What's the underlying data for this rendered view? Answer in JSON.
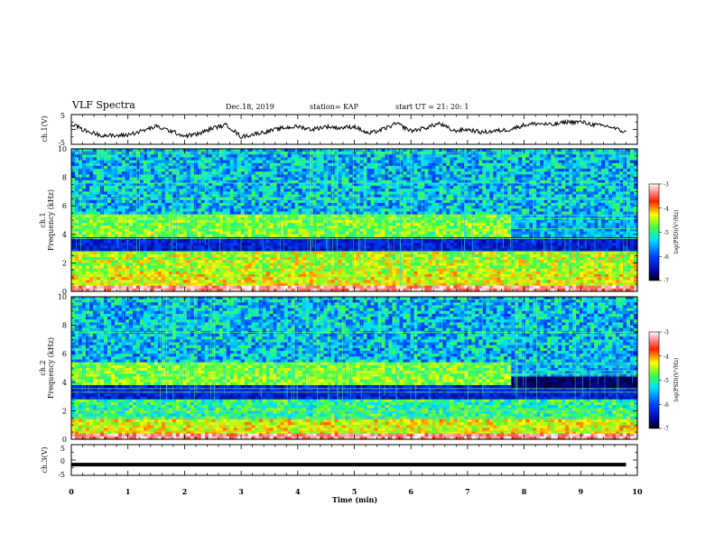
{
  "header": {
    "title": "VLF Spectra",
    "date": "Dec.18, 2019",
    "station": "station= KAP",
    "start": "start  UT  =   21: 20: 1"
  },
  "chart_data": [
    {
      "type": "line",
      "panel": "ch1-waveform",
      "ylabel": "ch.1(V)",
      "ylim": [
        -5,
        5
      ],
      "y_ticks": [
        "5",
        "-5"
      ],
      "xlim": [
        0,
        10
      ],
      "series": [
        {
          "x": [
            0,
            0.25,
            0.5,
            0.75,
            1.0,
            1.25,
            1.5,
            1.75,
            2.0,
            2.25,
            2.5,
            2.75,
            3.0,
            3.25,
            3.5,
            3.75,
            4.0,
            4.25,
            4.5,
            4.75,
            5.0,
            5.25,
            5.5,
            5.75,
            6.0,
            6.25,
            6.5,
            6.75,
            7.0,
            7.25,
            7.5,
            7.75,
            8.0,
            8.25,
            8.5,
            8.75,
            9.0,
            9.25,
            9.5,
            9.8
          ],
          "values": [
            2.0,
            -0.5,
            -1.8,
            -2.2,
            -1.8,
            -0.5,
            1.0,
            -0.5,
            -2.2,
            -1.5,
            0.5,
            1.5,
            -2.5,
            -1.5,
            -0.5,
            0.5,
            1.0,
            0.0,
            1.0,
            0.5,
            1.0,
            -1.5,
            0.0,
            2.0,
            -0.5,
            0.5,
            2.0,
            -0.5,
            0.0,
            -1.0,
            -0.5,
            0.0,
            1.5,
            2.0,
            1.5,
            2.5,
            2.5,
            1.5,
            1.0,
            -1.0
          ]
        }
      ]
    },
    {
      "type": "heatmap",
      "panel": "ch1-spectrogram",
      "ylabel_lines": [
        "ch.1",
        "Frequency  (kHz)"
      ],
      "ylim": [
        0,
        10
      ],
      "y_ticks": [
        "0",
        "2",
        "4",
        "6",
        "8",
        "10"
      ],
      "xlim": [
        0,
        10
      ],
      "colorbar": {
        "label": "log(PSD)(V²/Hz)",
        "range": [
          -7,
          -3
        ],
        "ticks": [
          "-3",
          "-4",
          "-5",
          "-6",
          "-7"
        ]
      }
    },
    {
      "type": "heatmap",
      "panel": "ch2-spectrogram",
      "ylabel_lines": [
        "ch.2",
        "Frequency  (kHz)"
      ],
      "ylim": [
        0,
        10
      ],
      "y_ticks": [
        "0",
        "2",
        "4",
        "6",
        "8",
        "10"
      ],
      "xlim": [
        0,
        10
      ],
      "colorbar": {
        "label": "log(PSD)(V²/Hz)",
        "range": [
          -7,
          -3
        ],
        "ticks": [
          "-3",
          "-4",
          "-5",
          "-6",
          "-7"
        ]
      }
    },
    {
      "type": "line",
      "panel": "ch3-waveform",
      "ylabel": "ch.3(V)",
      "ylim": [
        -5,
        5
      ],
      "y_ticks": [
        "5",
        "0",
        "-5"
      ],
      "xlim": [
        0,
        10
      ],
      "series": [
        {
          "x": [
            0,
            9.8
          ],
          "values": [
            -1.5,
            -1.5
          ]
        }
      ]
    }
  ],
  "x_axis": {
    "label": "Time  (min)",
    "ticks": [
      "0",
      "1",
      "2",
      "3",
      "4",
      "5",
      "6",
      "7",
      "8",
      "9",
      "10"
    ]
  },
  "colors": {
    "axis": "#000000",
    "background": "#ffffff"
  }
}
